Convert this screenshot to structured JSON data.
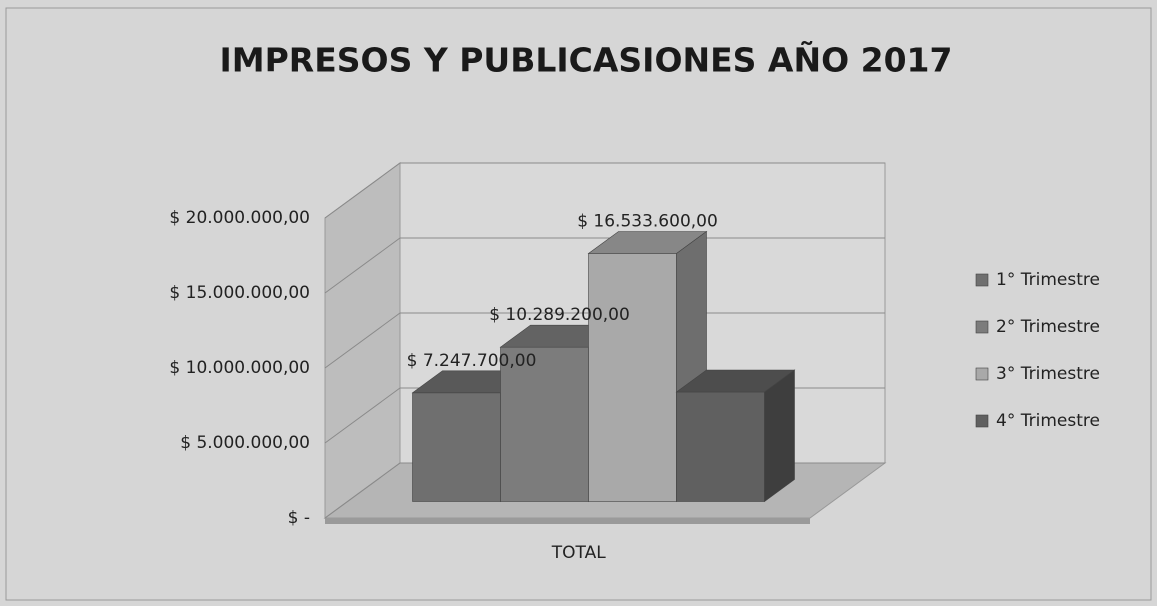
{
  "chart_data": {
    "type": "bar3d",
    "title": "IMPRESOS Y PUBLICASIONES AÑO 2017",
    "categories": [
      "TOTAL"
    ],
    "series": [
      {
        "name": "1° Trimestre",
        "color": "#6f6f6f",
        "values": [
          7247700
        ],
        "value_labels": [
          "$ 7.247.700,00"
        ]
      },
      {
        "name": "2° Trimestre",
        "color": "#7c7c7c",
        "values": [
          10289200
        ],
        "value_labels": [
          "$ 10.289.200,00"
        ]
      },
      {
        "name": "3° Trimestre",
        "color": "#a9a9a9",
        "values": [
          16533600
        ],
        "value_labels": [
          "$ 16.533.600,00"
        ]
      },
      {
        "name": "4° Trimestre",
        "color": "#606060",
        "values": [
          7300000
        ]
      }
    ],
    "ylim": [
      0,
      20000000
    ],
    "yticks": [
      {
        "value": 0,
        "label": "$ -"
      },
      {
        "value": 5000000,
        "label": "$ 5.000.000,00"
      },
      {
        "value": 10000000,
        "label": "$ 10.000.000,00"
      },
      {
        "value": 15000000,
        "label": "$ 15.000.000,00"
      },
      {
        "value": 20000000,
        "label": "$ 20.000.000,00"
      }
    ],
    "grid": true,
    "legend": "right"
  }
}
